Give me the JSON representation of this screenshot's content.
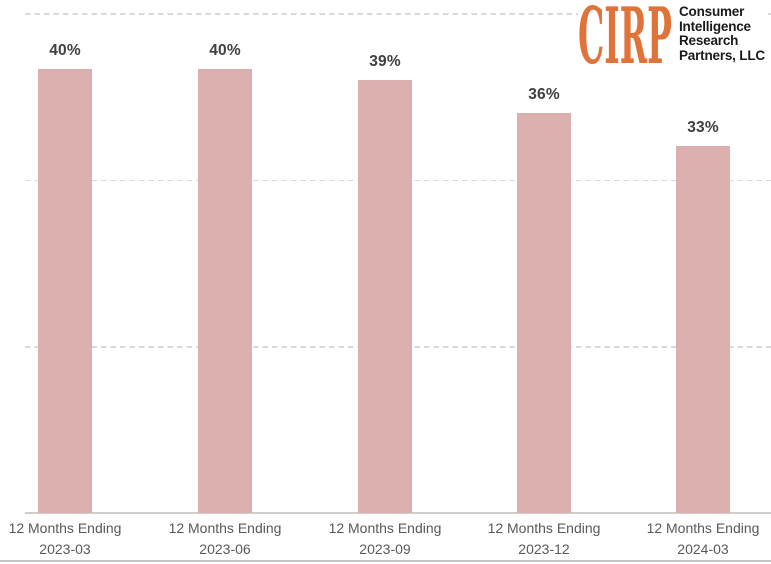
{
  "logo": {
    "acronym": "CIRP",
    "name_lines": [
      "Consumer",
      "Intelligence",
      "Research",
      "Partners, LLC"
    ],
    "accent_color": "#e0733a",
    "text_color": "#1a1a1a"
  },
  "chart_data": {
    "type": "bar",
    "title": "",
    "category_prefix": "12 Months Ending",
    "categories": [
      "2023-03",
      "2023-06",
      "2023-09",
      "2023-12",
      "2024-03"
    ],
    "values": [
      40,
      40,
      39,
      36,
      33
    ],
    "data_labels": [
      "40%",
      "40%",
      "39%",
      "36%",
      "33%"
    ],
    "ylim": [
      0,
      45
    ],
    "gridline_pcts": [
      15,
      30,
      45
    ],
    "grid": "dashed-horizontal",
    "legend": "none",
    "y_axis_ticks": "hidden",
    "bar_color": "#dcb0ae",
    "value_label_color": "#3f3f3f",
    "axis_label_color": "#595959",
    "gridline_color": "#d9d9d9",
    "axis_line_color": "#d0cdcd",
    "border_line_color": "#c4c4c4"
  }
}
